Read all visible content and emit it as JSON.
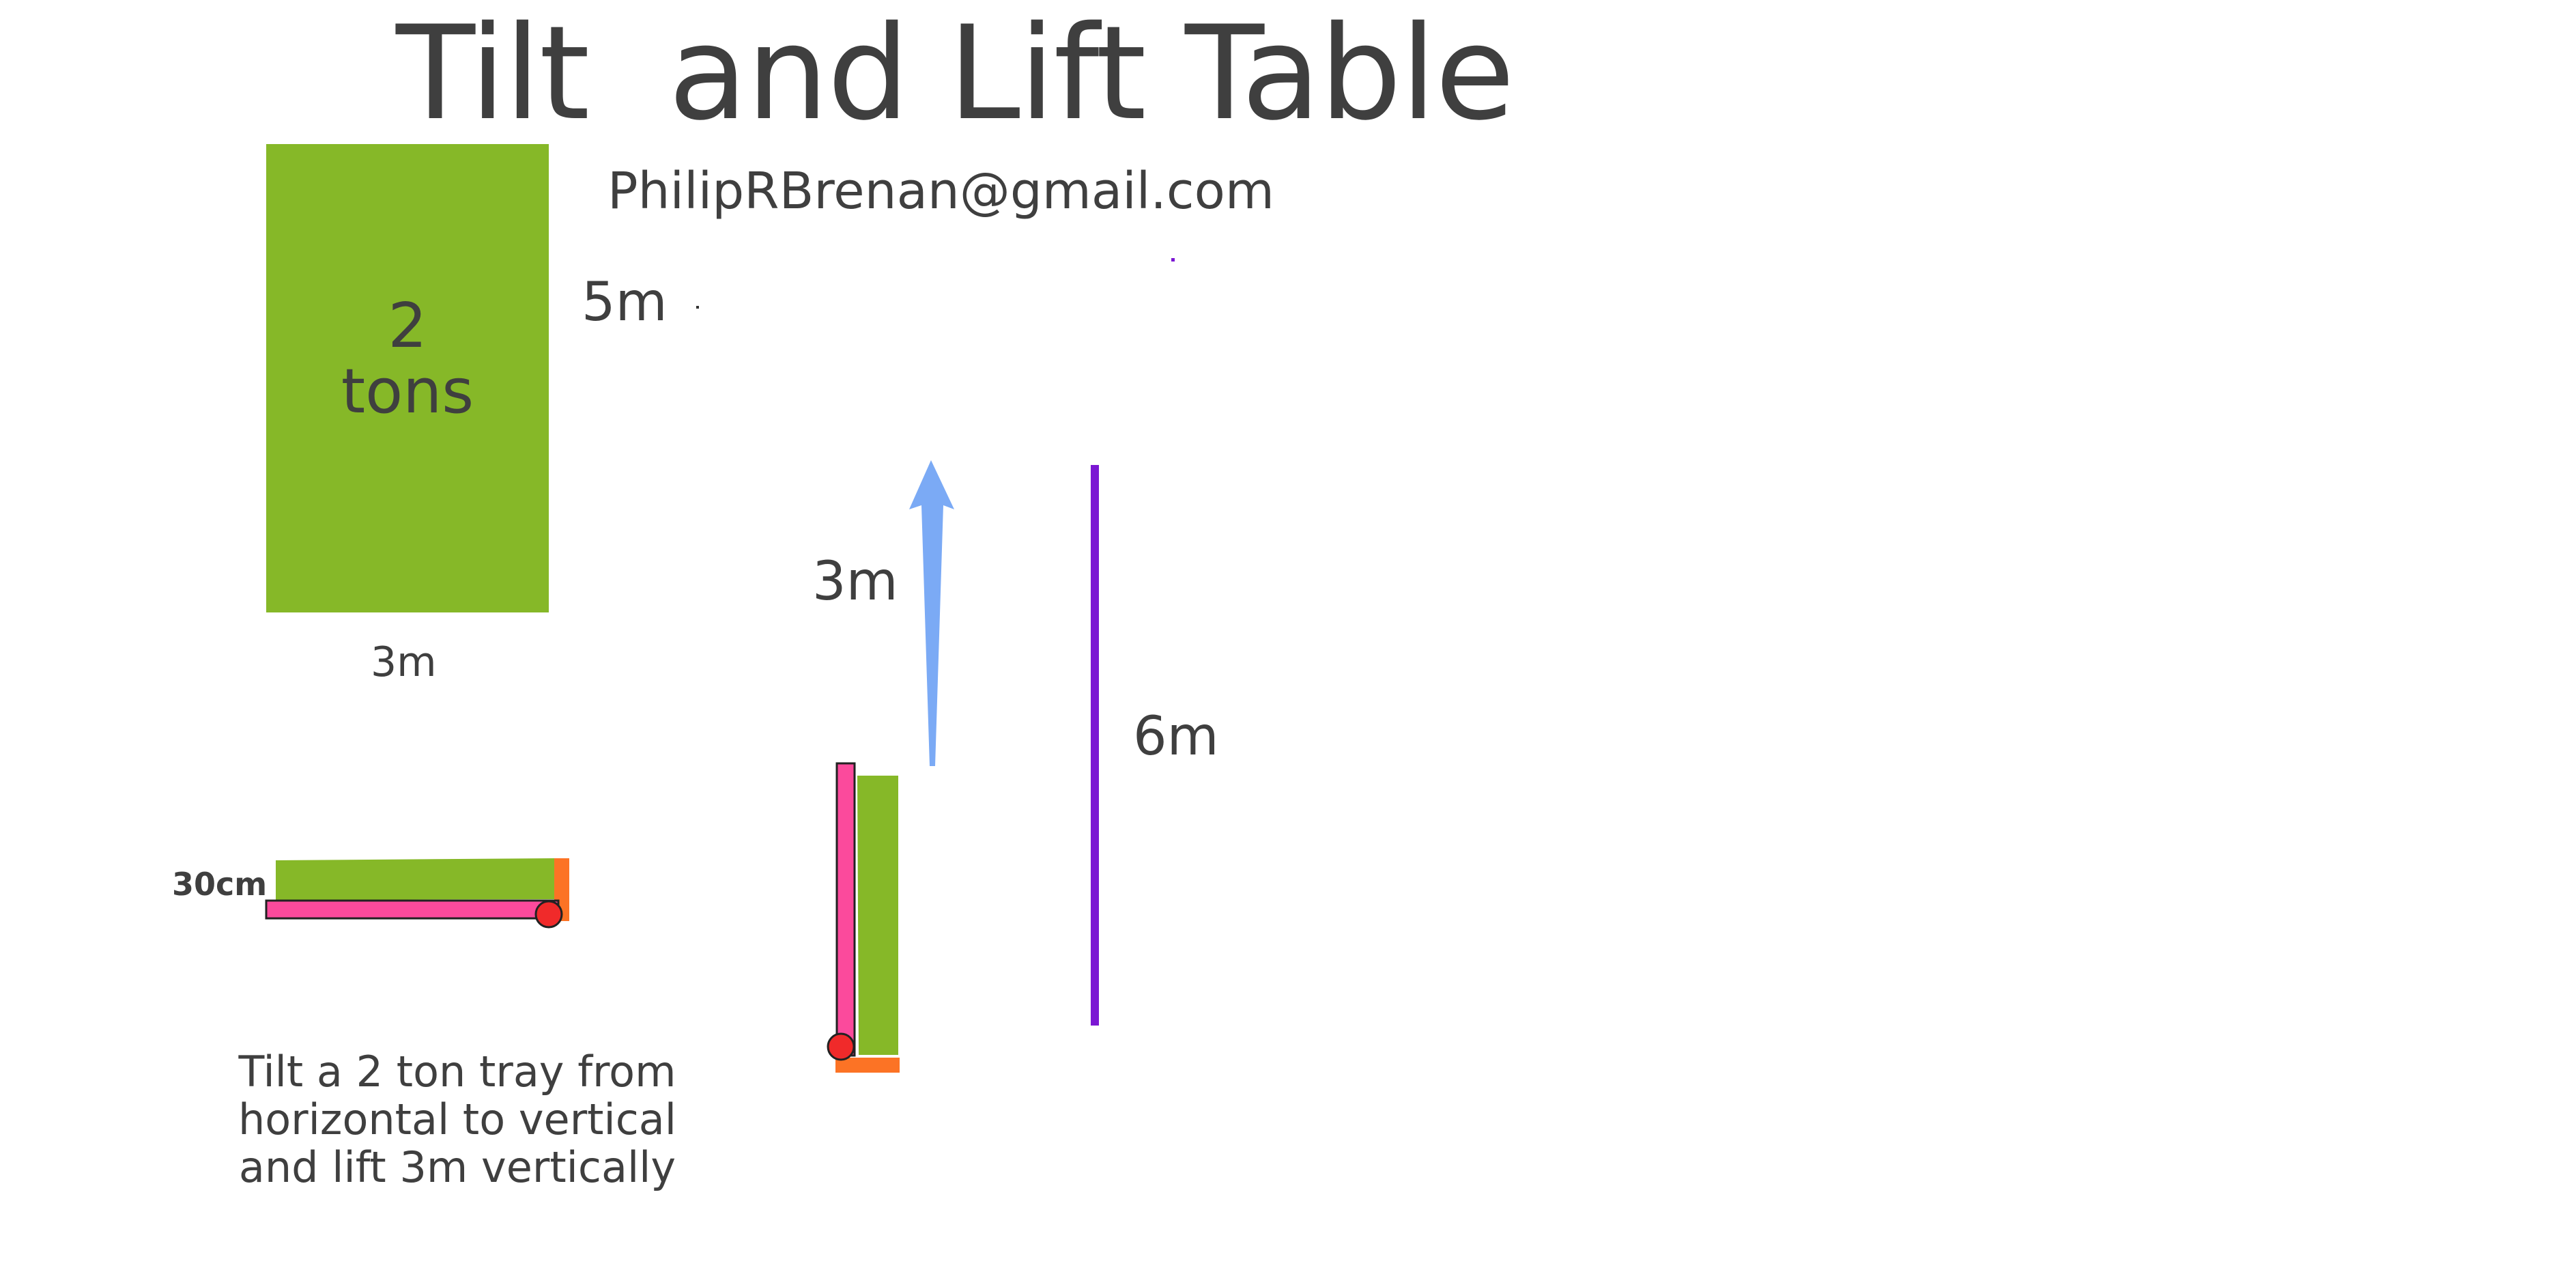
{
  "title": "Tilt  and Lift Table",
  "contact_email": "PhilipRBrenan@gmail.com",
  "tray_block": {
    "weight_number": "2",
    "weight_unit": "tons",
    "height_label": "5m",
    "width_label": "3m"
  },
  "horizontal_tray": {
    "thickness_label": "30cm"
  },
  "lift": {
    "lift_label": "3m",
    "total_height_label": "6m"
  },
  "caption": "Tilt a 2 ton tray from horizontal to vertical and lift 3m vertically",
  "colors": {
    "tray_green": "#86b828",
    "arm_pink": "#fb4a9c",
    "bracket_orange": "#fc7325",
    "pivot_red": "#f02a2a",
    "arrow_blue": "#7baaf5",
    "height_bar_purple": "#7b17d3",
    "text_dark": "#3f3f3f"
  }
}
